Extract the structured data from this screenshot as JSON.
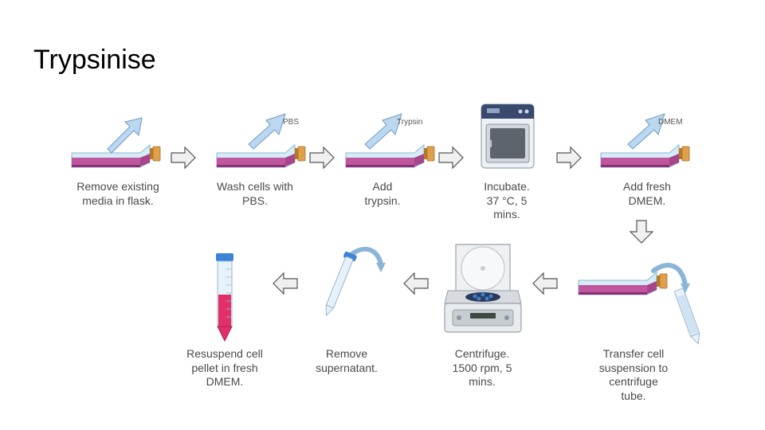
{
  "title": "Trypsinise",
  "steps": [
    {
      "caption": "Remove existing\nmedia in flask."
    },
    {
      "caption": "Wash cells with\nPBS.",
      "label": "PBS"
    },
    {
      "caption": "Add\ntrypsin.",
      "label": "Trypsin"
    },
    {
      "caption": "Incubate.\n37 °C, 5\nmins."
    },
    {
      "caption": "Add fresh\nDMEM.",
      "label": "DMEM"
    },
    {
      "caption": "Transfer cell\nsuspension to\ncentrifuge\ntube."
    },
    {
      "caption": "Centrifuge.\n1500 rpm, 5\nmins."
    },
    {
      "caption": "Remove\nsupernatant."
    },
    {
      "caption": "Resuspend cell\npellet in fresh\nDMEM."
    }
  ],
  "colors": {
    "media": "#c0569e",
    "flask": "#cfe6f5",
    "cap": "#e0a04a",
    "arrow_fill": "#f0f0f0",
    "arrow_stroke": "#555555",
    "liquid_red": "#e0306a"
  }
}
